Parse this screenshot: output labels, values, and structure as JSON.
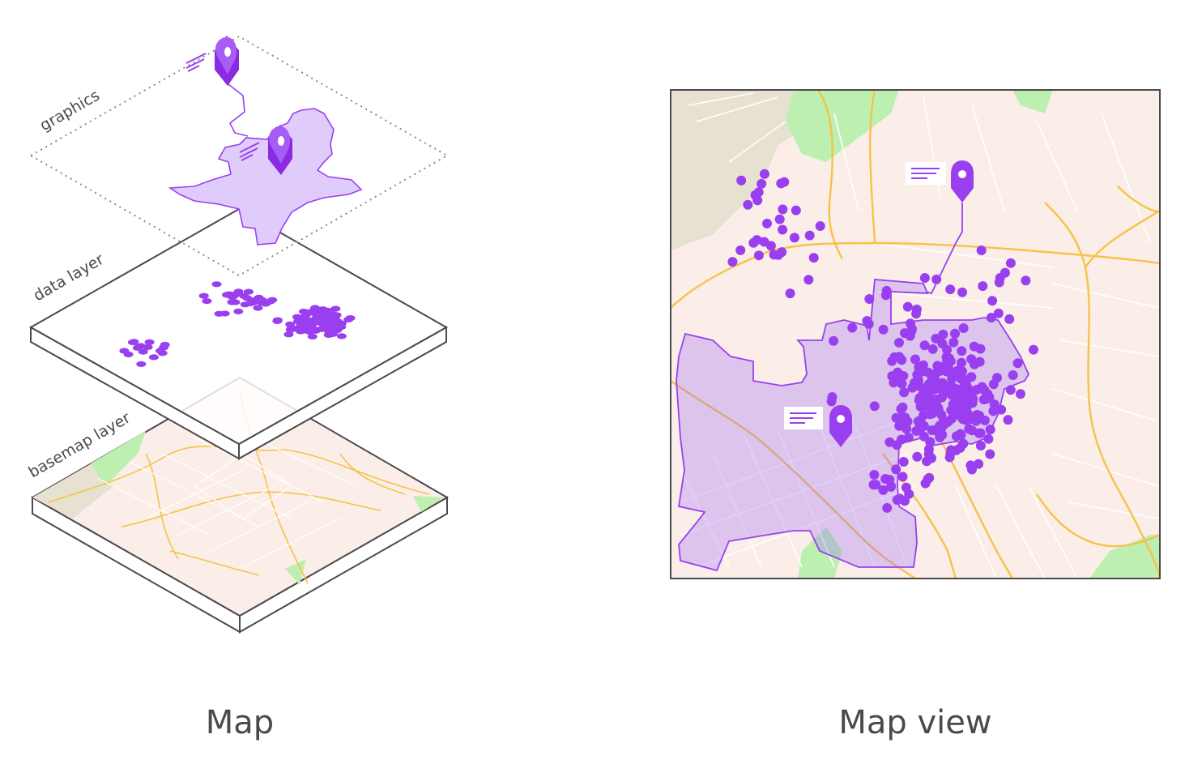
{
  "layers": {
    "graphics": "graphics",
    "data": "data layer",
    "basemap": "basemap layer"
  },
  "captions": {
    "left": "Map",
    "right": "Map view"
  },
  "colors": {
    "accent": "#9a3ff0",
    "polygon_fill": "#dcc8f7",
    "basemap": "#fbeee8",
    "roads_major": "#f6c24a",
    "roads_minor": "#ffffff",
    "park": "#bdf0b0",
    "urban": "#e7e1d2",
    "outline": "#4a4a4a"
  },
  "icons": [
    "map-pin-icon",
    "callout-lines-icon"
  ]
}
